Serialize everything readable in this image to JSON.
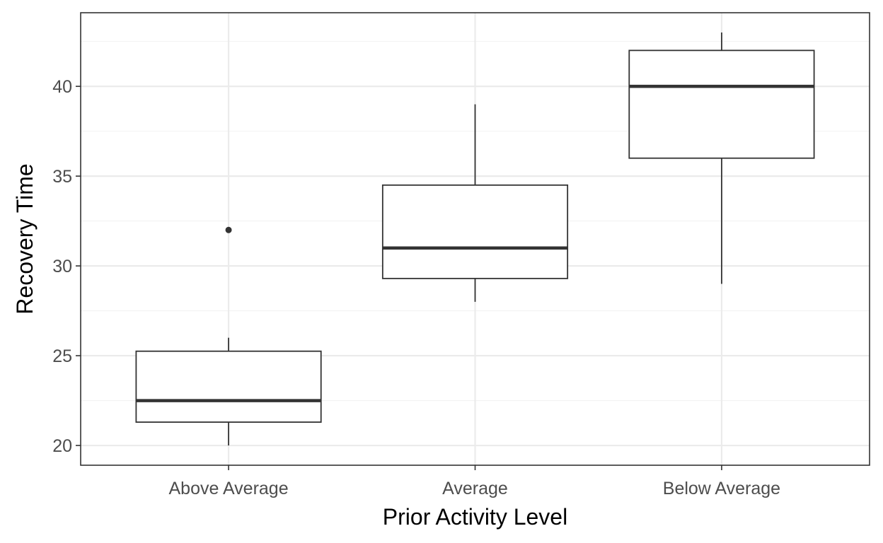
{
  "chart_data": {
    "type": "boxplot",
    "xlabel": "Prior Activity Level",
    "ylabel": "Recovery Time",
    "ylim": [
      18.9,
      44.1
    ],
    "y_ticks": [
      20,
      25,
      30,
      35,
      40
    ],
    "y_minor_ticks": [
      22.5,
      27.5,
      32.5,
      37.5,
      42.5
    ],
    "grid": true,
    "categories": [
      "Above Average",
      "Average",
      "Below Average"
    ],
    "boxes": [
      {
        "category": "Above Average",
        "whisker_low": 20,
        "q1": 21.3,
        "median": 22.5,
        "q3": 25.25,
        "whisker_high": 26,
        "outliers": [
          32
        ]
      },
      {
        "category": "Average",
        "whisker_low": 28,
        "q1": 29.3,
        "median": 31,
        "q3": 34.5,
        "whisker_high": 39,
        "outliers": []
      },
      {
        "category": "Below Average",
        "whisker_low": 29,
        "q1": 36,
        "median": 40,
        "q3": 42,
        "whisker_high": 43,
        "outliers": []
      }
    ]
  }
}
